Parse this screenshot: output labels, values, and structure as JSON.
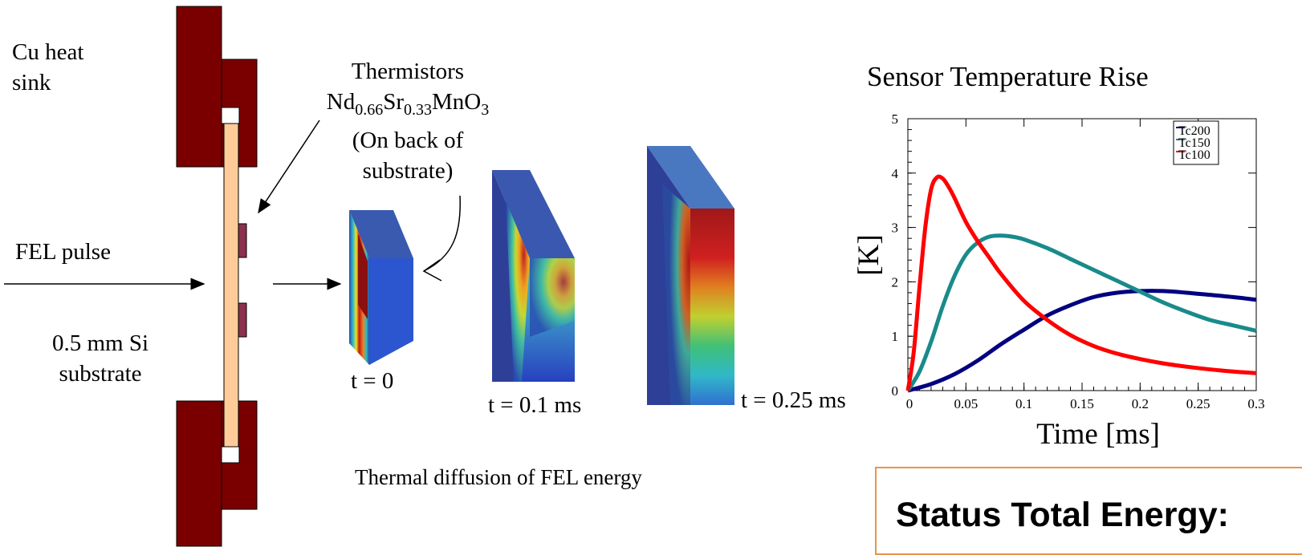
{
  "labels": {
    "cu_heat_sink_line1": "Cu heat",
    "cu_heat_sink_line2": "sink",
    "fel_pulse": "FEL pulse",
    "substrate_line1": "0.5 mm Si",
    "substrate_line2": "substrate",
    "thermistors_title": "Thermistors",
    "thermistors_formula": {
      "nd": "Nd",
      "nd_sub": "0.66",
      "sr": "Sr",
      "sr_sub": "0.33",
      "mn": "MnO",
      "o_sub": "3"
    },
    "thermistors_note_line1": "(On back of",
    "thermistors_note_line2": "substrate)",
    "t0": "t = 0",
    "t1": "t = 0.1 ms",
    "t2": "t = 0.25 ms",
    "caption": "Thermal diffusion of FEL energy"
  },
  "chart_title": "Sensor Temperature  Rise",
  "status_text": "Status Total Energy:",
  "colors": {
    "heat_sink": "#7a0000",
    "substrate": "#ffcc99",
    "thermistor": "#8b3050",
    "status_border": "#e8944a"
  },
  "chart_data": {
    "type": "line",
    "title": "Sensor Temperature  Rise",
    "xlabel": "Time [ms]",
    "ylabel": "[K]",
    "xlim": [
      0,
      0.3
    ],
    "ylim": [
      0,
      5
    ],
    "x_ticks": [
      "0",
      "0.05",
      "0.1",
      "0.15",
      "0.2",
      "0.25",
      "0.3"
    ],
    "y_ticks": [
      "0",
      "1",
      "2",
      "3",
      "4",
      "5"
    ],
    "legend_position": "top-right",
    "series": [
      {
        "name": "Tc200",
        "color": "#000080",
        "x": [
          0,
          0.02,
          0.04,
          0.06,
          0.08,
          0.1,
          0.12,
          0.14,
          0.16,
          0.18,
          0.2,
          0.22,
          0.24,
          0.26,
          0.28,
          0.3
        ],
        "values": [
          0,
          0.12,
          0.3,
          0.55,
          0.85,
          1.12,
          1.38,
          1.57,
          1.72,
          1.8,
          1.83,
          1.83,
          1.8,
          1.76,
          1.72,
          1.67
        ]
      },
      {
        "name": "Tc150",
        "color": "#1a8a8a",
        "x": [
          0,
          0.01,
          0.02,
          0.03,
          0.04,
          0.05,
          0.06,
          0.07,
          0.08,
          0.09,
          0.1,
          0.12,
          0.14,
          0.16,
          0.18,
          0.2,
          0.22,
          0.24,
          0.26,
          0.28,
          0.3
        ],
        "values": [
          0,
          0.35,
          0.9,
          1.55,
          2.1,
          2.5,
          2.72,
          2.83,
          2.85,
          2.83,
          2.78,
          2.62,
          2.42,
          2.22,
          2.02,
          1.82,
          1.62,
          1.45,
          1.3,
          1.2,
          1.1
        ]
      },
      {
        "name": "Tc100",
        "color": "#ff0000",
        "x": [
          0,
          0.005,
          0.01,
          0.015,
          0.02,
          0.025,
          0.03,
          0.035,
          0.04,
          0.05,
          0.06,
          0.07,
          0.08,
          0.1,
          0.12,
          0.14,
          0.16,
          0.18,
          0.2,
          0.22,
          0.24,
          0.26,
          0.28,
          0.3
        ],
        "values": [
          0,
          0.7,
          1.9,
          3.0,
          3.7,
          3.92,
          3.9,
          3.75,
          3.55,
          3.1,
          2.75,
          2.45,
          2.15,
          1.65,
          1.3,
          1.02,
          0.82,
          0.68,
          0.58,
          0.5,
          0.44,
          0.39,
          0.35,
          0.32
        ]
      }
    ]
  }
}
